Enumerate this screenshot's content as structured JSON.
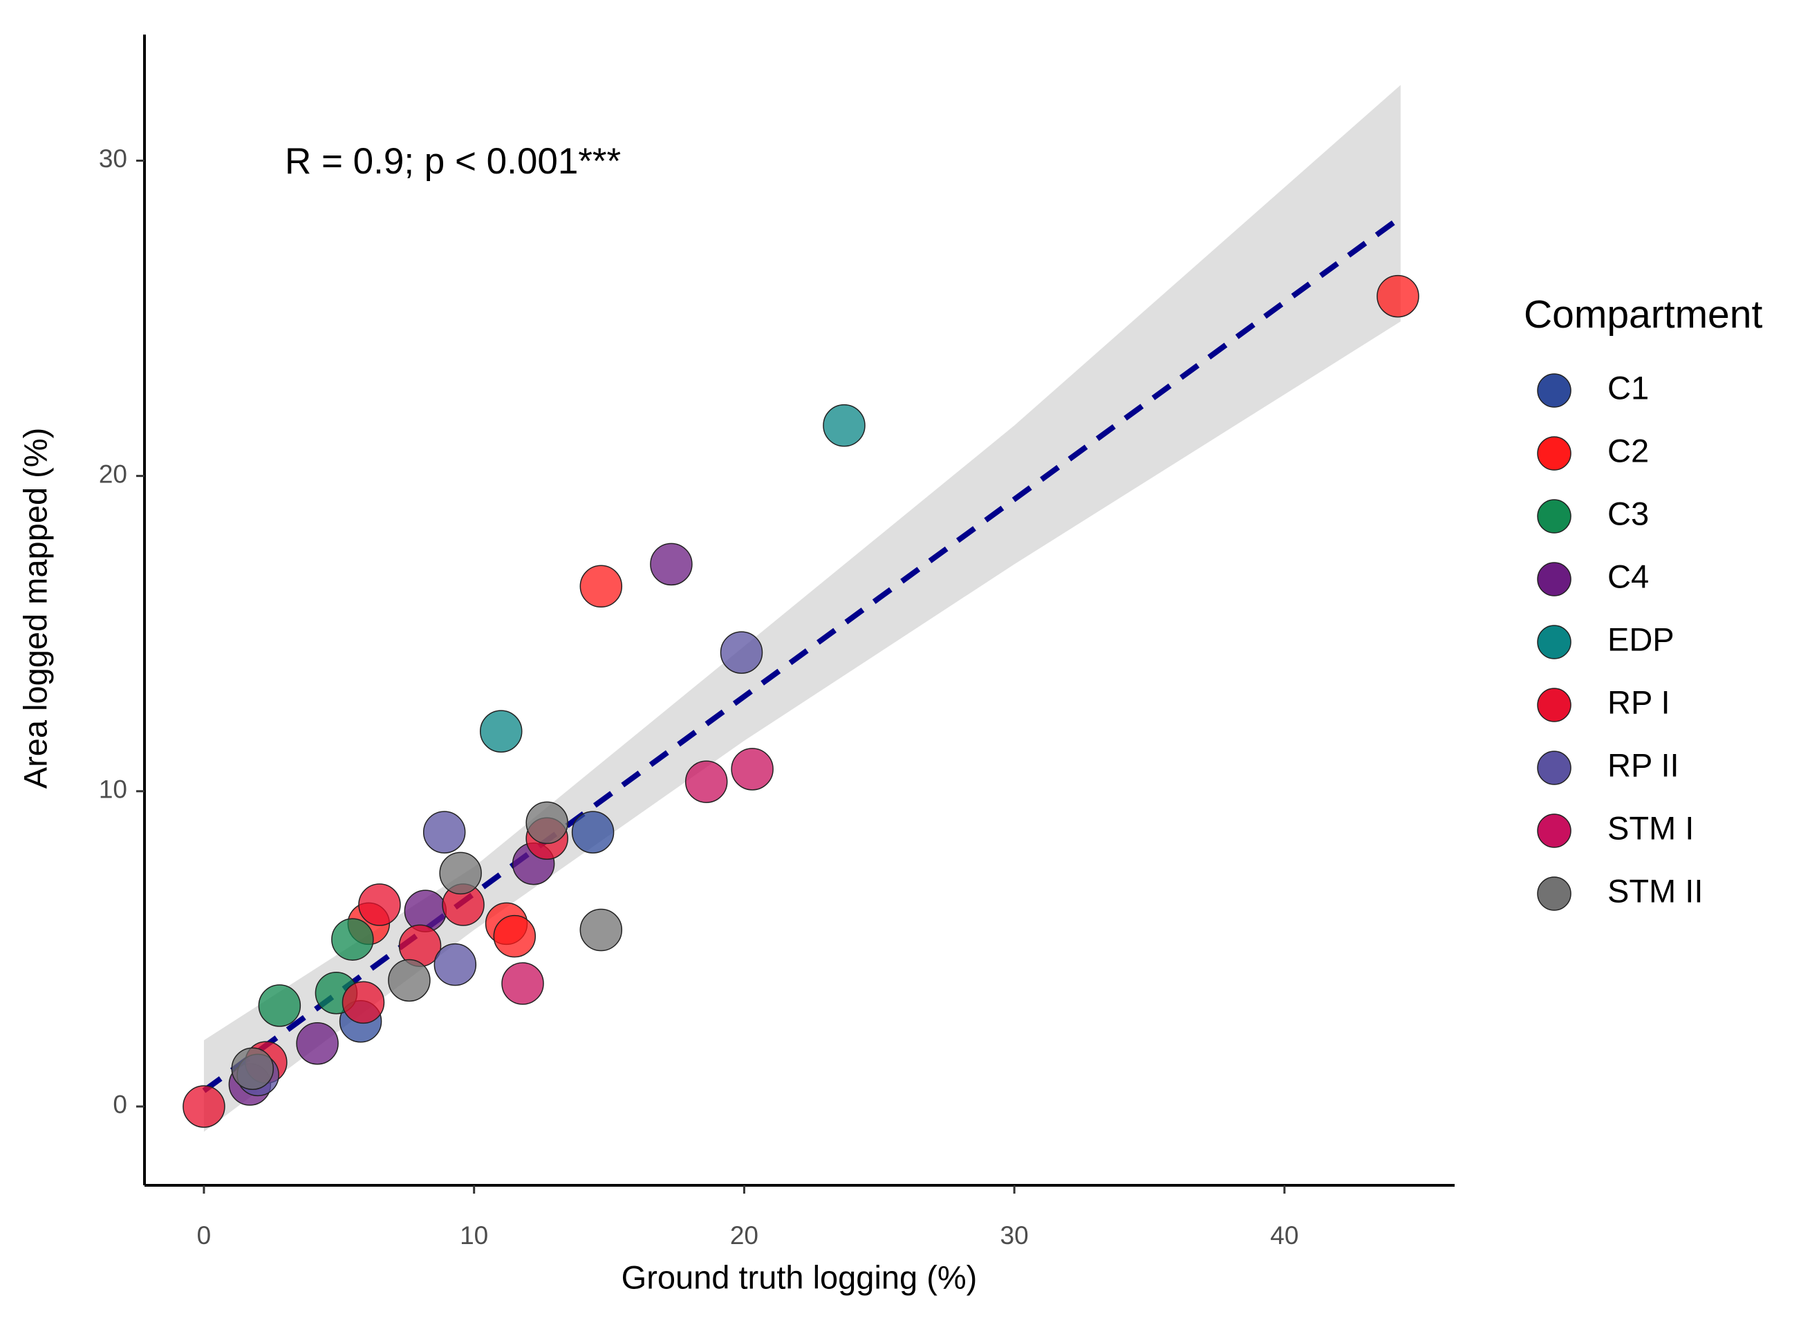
{
  "chart_data": {
    "type": "scatter",
    "annotation": "R = 0.9; p < 0.001***",
    "x_label": "Ground truth logging (%)",
    "y_label": "Area logged mapped (%)",
    "legend_title": "Compartment",
    "legend": "right",
    "xlim": [
      -2.2,
      46.3
    ],
    "xticks": [
      0,
      10,
      20,
      30,
      40
    ],
    "ylim": [
      -2.5,
      34.0
    ],
    "yticks": [
      0,
      10,
      20,
      30
    ],
    "fit": {
      "color": "#00008b",
      "x": [
        0,
        44.3
      ],
      "y": [
        0.5,
        28.2
      ]
    },
    "band": {
      "color": "#d9d9d9",
      "x": [
        0,
        10,
        20,
        30,
        44.3
      ],
      "lower": [
        -0.8,
        5.6,
        11.6,
        17.2,
        24.9
      ],
      "upper": [
        2.1,
        7.6,
        14.6,
        21.6,
        32.4
      ]
    },
    "series": [
      {
        "name": "C1",
        "color": "#2e4a9a",
        "x": [
          5.8,
          14.4
        ],
        "values": [
          2.7,
          8.7
        ]
      },
      {
        "name": "C2",
        "color": "#ff1a1a",
        "x": [
          44.2,
          14.7,
          11.2,
          11.5,
          6.1
        ],
        "values": [
          25.7,
          16.5,
          5.8,
          5.4,
          5.8
        ]
      },
      {
        "name": "C3",
        "color": "#128a50",
        "x": [
          5.5,
          2.8,
          4.9
        ],
        "values": [
          5.3,
          3.2,
          3.6
        ]
      },
      {
        "name": "C4",
        "color": "#6a1b80",
        "x": [
          17.3,
          12.2,
          8.2,
          4.2,
          1.7
        ],
        "values": [
          17.2,
          7.7,
          6.2,
          2.0,
          0.7
        ]
      },
      {
        "name": "EDP",
        "color": "#0a8585",
        "x": [
          23.7,
          11.0
        ],
        "values": [
          21.6,
          11.9
        ]
      },
      {
        "name": "RP I",
        "color": "#e8102e",
        "x": [
          0,
          6.5,
          9.6,
          8.0,
          12.7,
          5.9,
          2.3
        ],
        "values": [
          0,
          6.4,
          6.4,
          5.1,
          8.5,
          3.3,
          1.4
        ]
      },
      {
        "name": "RP II",
        "color": "#5a52a0",
        "x": [
          19.9,
          8.9,
          9.3,
          2.0
        ],
        "values": [
          14.4,
          8.7,
          4.5,
          1.0
        ]
      },
      {
        "name": "STM I",
        "color": "#c8105e",
        "x": [
          18.6,
          20.3,
          11.8
        ],
        "values": [
          10.3,
          10.7,
          3.9
        ]
      },
      {
        "name": "STM II",
        "color": "#727272",
        "x": [
          14.7,
          7.6,
          9.5,
          12.7,
          1.8
        ],
        "values": [
          5.6,
          4.0,
          7.4,
          9.0,
          1.2
        ]
      }
    ]
  }
}
